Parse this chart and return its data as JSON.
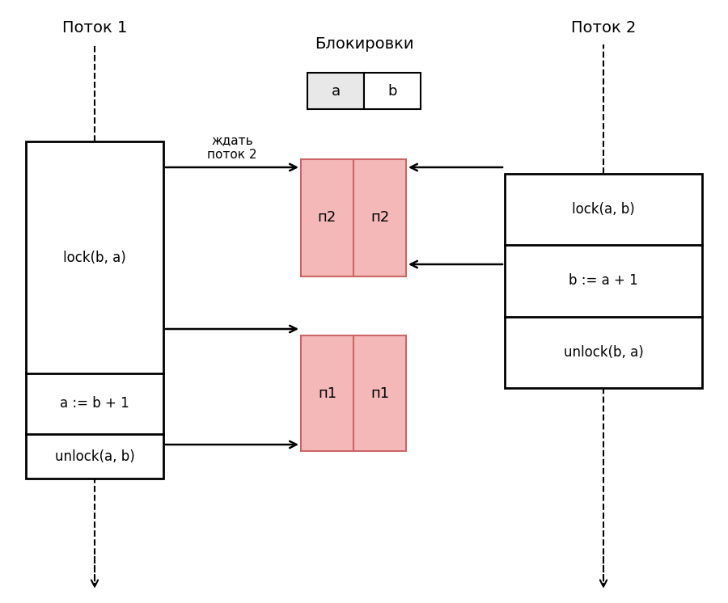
{
  "title_potok1": "Поток 1",
  "title_potok2": "Поток 2",
  "title_blocks": "Блокировки",
  "label_a": "a",
  "label_b": "b",
  "thread1_lock_text": "lock(b, a)",
  "thread1_assign_text": "a := b + 1",
  "thread1_unlock_text": "unlock(a, b)",
  "thread2_lock_text": "lock(a, b)",
  "thread2_assign_text": "b := a + 1",
  "thread2_unlock_text": "unlock(b, a)",
  "wait_text": "ждать\nпоток 2",
  "p2_label": "п2",
  "p1_label": "п1",
  "bg_color": "#ffffff",
  "box_edge": "#000000",
  "pink_fill": "#f5b8b8",
  "pink_edge": "#cc6666",
  "gray_fill": "#e0e0e0",
  "white_fill": "#ffffff",
  "fig_w": 9.0,
  "fig_h": 7.46,
  "dpi": 100
}
